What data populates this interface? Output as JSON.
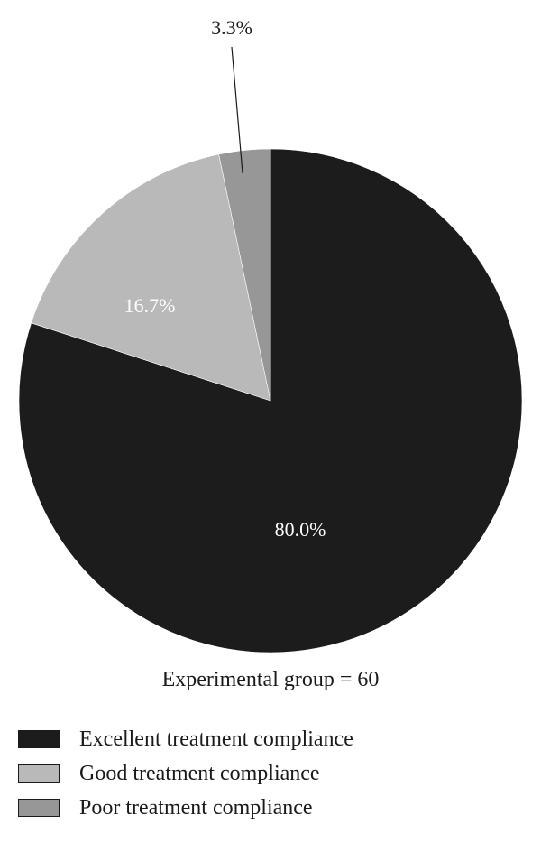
{
  "chart_data": {
    "type": "pie",
    "caption": "Experimental group = 60",
    "start_angle_deg": 0,
    "direction": "clockwise",
    "slices": [
      {
        "name": "Excellent treatment compliance",
        "value": 80.0,
        "label": "80.0%",
        "color": "#1c1c1c",
        "label_color": "#ffffff"
      },
      {
        "name": "Good treatment compliance",
        "value": 16.7,
        "label": "16.7%",
        "color": "#b9b9b9",
        "label_color": "#ffffff"
      },
      {
        "name": "Poor treatment compliance",
        "value": 3.3,
        "label": "3.3%",
        "color": "#979797",
        "label_color": "#1a1a1a"
      }
    ],
    "legend_placement": "bottom-left"
  }
}
